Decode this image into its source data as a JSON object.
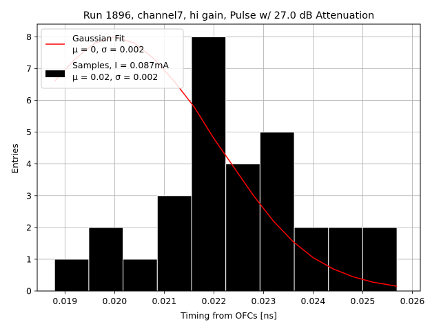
{
  "chart_data": {
    "type": "bar",
    "title": "Run 1896, channel7, hi gain, Pulse w/ 27.0 dB Attenuation",
    "xlabel": "Timing from OFCs [ns]",
    "ylabel": "Entries",
    "xlim": [
      0.01844,
      0.02616
    ],
    "ylim": [
      0,
      8.4
    ],
    "x_ticks": [
      0.019,
      0.02,
      0.021,
      0.022,
      0.023,
      0.024,
      0.025,
      0.026
    ],
    "x_tick_labels": [
      "0.019",
      "0.020",
      "0.021",
      "0.022",
      "0.023",
      "0.024",
      "0.025",
      "0.026"
    ],
    "y_ticks": [
      0,
      1,
      2,
      3,
      4,
      5,
      6,
      7,
      8
    ],
    "y_tick_labels": [
      "0",
      "1",
      "2",
      "3",
      "4",
      "5",
      "6",
      "7",
      "8"
    ],
    "grid": true,
    "legend_position": "top-left",
    "bars": {
      "name_line1": "Samples, I = 0.087mA",
      "name_line2": "μ = 0.02, σ = 0.002",
      "color": "#000000",
      "edge_color": "#ffffff",
      "bin_edges": [
        0.01879,
        0.01948,
        0.02017,
        0.02086,
        0.02155,
        0.02224,
        0.02293,
        0.02362,
        0.02431,
        0.025,
        0.02569
      ],
      "values": [
        1,
        2,
        1,
        3,
        8,
        4,
        5,
        2,
        2,
        2
      ]
    },
    "fit": {
      "name_line1": "Gaussian Fit",
      "name_line2": "μ = 0, σ = 0.002",
      "color": "#ff0000",
      "x": [
        0.01879,
        0.0192,
        0.0196,
        0.02,
        0.0204,
        0.0208,
        0.0212,
        0.0216,
        0.022,
        0.0224,
        0.0228,
        0.0232,
        0.0236,
        0.024,
        0.0244,
        0.0248,
        0.0252,
        0.02569
      ],
      "y": [
        6.6,
        7.3,
        7.8,
        8.0,
        7.8,
        7.3,
        6.6,
        5.8,
        4.8,
        3.9,
        3.0,
        2.2,
        1.55,
        1.05,
        0.7,
        0.45,
        0.28,
        0.15
      ]
    }
  }
}
